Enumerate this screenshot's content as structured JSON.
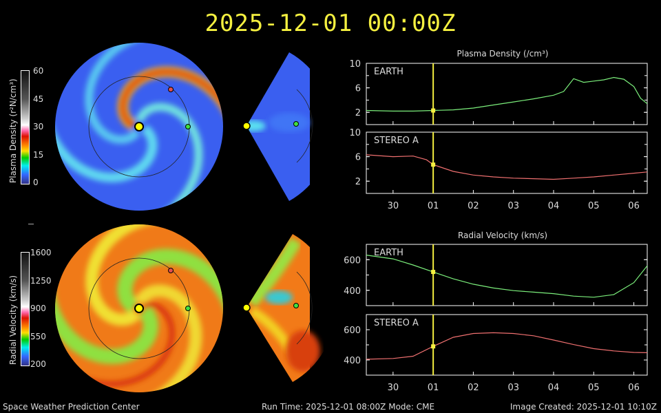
{
  "header": {
    "timestamp": "2025-12-01 00:00Z"
  },
  "colorbars": {
    "density": {
      "label": "Plasma Density (r²N/cm³)",
      "ticks": [
        "60",
        "45",
        "30",
        "15",
        "0"
      ]
    },
    "velocity": {
      "label": "Radial Velocity (km/s)",
      "ticks": [
        "1600",
        "1250",
        "900",
        "550",
        "200"
      ]
    }
  },
  "markers": {
    "earth_color": "#40e040",
    "stereo_a_color": "#e05050",
    "sun_color": "#ffff00"
  },
  "footer": {
    "left": "Space Weather Prediction Center",
    "center": "Run Time: 2025-12-01 08:00Z  Mode: CME",
    "right": "Image Created: 2025-12-01 10:10Z"
  },
  "chart_data": [
    {
      "type": "line",
      "title": "Plasma Density (/cm³)",
      "panel": "EARTH",
      "ylim": [
        0,
        10
      ],
      "yticks": [
        "2",
        "6",
        "10"
      ],
      "xticks": [
        "30",
        "01",
        "02",
        "03",
        "04",
        "05",
        "06"
      ],
      "color": "#7cf07c",
      "current_time": "2025-12-01T00:00Z",
      "x": [
        "2025-11-29T08:00Z",
        "2025-11-30T00:00Z",
        "2025-11-30T12:00Z",
        "2025-12-01T00:00Z",
        "2025-12-01T12:00Z",
        "2025-12-02T00:00Z",
        "2025-12-02T12:00Z",
        "2025-12-03T00:00Z",
        "2025-12-03T12:00Z",
        "2025-12-04T00:00Z",
        "2025-12-04T06:00Z",
        "2025-12-04T12:00Z",
        "2025-12-04T18:00Z",
        "2025-12-05T00:00Z",
        "2025-12-05T06:00Z",
        "2025-12-05T12:00Z",
        "2025-12-05T18:00Z",
        "2025-12-06T00:00Z",
        "2025-12-06T04:00Z",
        "2025-12-06T08:00Z"
      ],
      "y": [
        2.3,
        2.2,
        2.2,
        2.3,
        2.4,
        2.7,
        3.2,
        3.7,
        4.2,
        4.8,
        5.4,
        7.5,
        6.9,
        7.1,
        7.3,
        7.7,
        7.4,
        6.2,
        4.3,
        3.4
      ]
    },
    {
      "type": "line",
      "panel": "STEREO A",
      "ylim": [
        0,
        10
      ],
      "yticks": [
        "2",
        "6",
        "10"
      ],
      "xticks": [
        "30",
        "01",
        "02",
        "03",
        "04",
        "05",
        "06"
      ],
      "color": "#f07070",
      "current_time": "2025-12-01T00:00Z",
      "x": [
        "2025-11-29T08:00Z",
        "2025-11-30T00:00Z",
        "2025-11-30T12:00Z",
        "2025-11-30T20:00Z",
        "2025-12-01T00:00Z",
        "2025-12-01T12:00Z",
        "2025-12-02T00:00Z",
        "2025-12-02T12:00Z",
        "2025-12-03T00:00Z",
        "2025-12-03T12:00Z",
        "2025-12-04T00:00Z",
        "2025-12-04T12:00Z",
        "2025-12-05T00:00Z",
        "2025-12-05T12:00Z",
        "2025-12-06T00:00Z",
        "2025-12-06T08:00Z"
      ],
      "y": [
        6.3,
        6.0,
        6.1,
        5.5,
        4.7,
        3.6,
        3.0,
        2.7,
        2.5,
        2.4,
        2.3,
        2.5,
        2.7,
        3.0,
        3.3,
        3.5
      ]
    },
    {
      "type": "line",
      "title": "Radial Velocity (km/s)",
      "panel": "EARTH",
      "ylim": [
        300,
        700
      ],
      "yticks": [
        "400",
        "600"
      ],
      "xticks": [
        "30",
        "01",
        "02",
        "03",
        "04",
        "05",
        "06"
      ],
      "color": "#7cf07c",
      "current_time": "2025-12-01T00:00Z",
      "x": [
        "2025-11-29T08:00Z",
        "2025-11-30T00:00Z",
        "2025-11-30T12:00Z",
        "2025-12-01T00:00Z",
        "2025-12-01T12:00Z",
        "2025-12-02T00:00Z",
        "2025-12-02T12:00Z",
        "2025-12-03T00:00Z",
        "2025-12-03T12:00Z",
        "2025-12-04T00:00Z",
        "2025-12-04T12:00Z",
        "2025-12-05T00:00Z",
        "2025-12-05T12:00Z",
        "2025-12-06T00:00Z",
        "2025-12-06T08:00Z"
      ],
      "y": [
        630,
        605,
        565,
        520,
        475,
        440,
        415,
        398,
        388,
        378,
        362,
        355,
        372,
        450,
        560
      ]
    },
    {
      "type": "line",
      "panel": "STEREO A",
      "ylim": [
        300,
        700
      ],
      "yticks": [
        "400",
        "600"
      ],
      "xticks": [
        "30",
        "01",
        "02",
        "03",
        "04",
        "05",
        "06"
      ],
      "color": "#f07070",
      "current_time": "2025-12-01T00:00Z",
      "x": [
        "2025-11-29T08:00Z",
        "2025-11-30T00:00Z",
        "2025-11-30T12:00Z",
        "2025-12-01T00:00Z",
        "2025-12-01T12:00Z",
        "2025-12-02T00:00Z",
        "2025-12-02T12:00Z",
        "2025-12-03T00:00Z",
        "2025-12-03T12:00Z",
        "2025-12-04T00:00Z",
        "2025-12-04T12:00Z",
        "2025-12-05T00:00Z",
        "2025-12-05T12:00Z",
        "2025-12-06T00:00Z",
        "2025-12-06T08:00Z"
      ],
      "y": [
        405,
        410,
        425,
        490,
        550,
        575,
        580,
        575,
        560,
        532,
        502,
        475,
        460,
        450,
        448
      ]
    }
  ]
}
